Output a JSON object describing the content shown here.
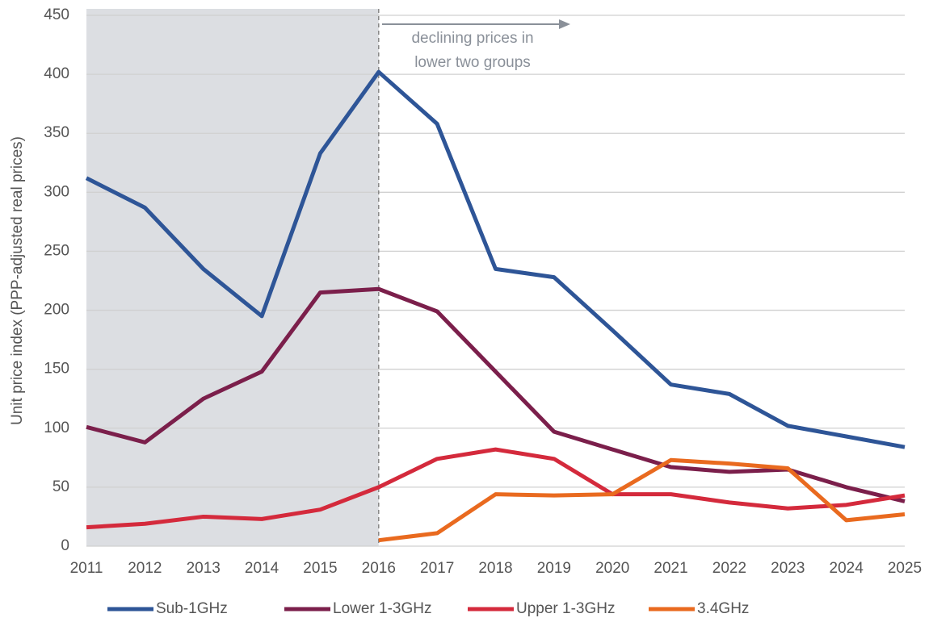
{
  "chart_data": {
    "type": "line",
    "y_label": "Unit price index (PPP-adjusted real prices)",
    "annotation": [
      "declining prices in",
      "lower two groups"
    ],
    "shaded_xlim": [
      2011,
      2016
    ],
    "x": [
      2011,
      2012,
      2013,
      2014,
      2015,
      2016,
      2017,
      2018,
      2019,
      2020,
      2021,
      2022,
      2023,
      2024,
      2025
    ],
    "xlim": [
      2011,
      2025
    ],
    "ylim": [
      0,
      450
    ],
    "yticks": [
      0,
      50,
      100,
      150,
      200,
      250,
      300,
      350,
      400,
      450
    ],
    "grid": true,
    "legend": "bottom",
    "series": [
      {
        "name": "Sub-1GHz",
        "color": "#2e5597",
        "values": [
          312,
          287,
          235,
          195,
          333,
          402,
          358,
          235,
          228,
          183,
          137,
          129,
          102,
          93,
          84
        ]
      },
      {
        "name": "Lower 1-3GHz",
        "color": "#7b1f4b",
        "values": [
          101,
          88,
          125,
          148,
          215,
          218,
          199,
          148,
          97,
          82,
          67,
          63,
          65,
          50,
          38
        ]
      },
      {
        "name": "Upper 1-3GHz",
        "color": "#d42a3c",
        "values": [
          16,
          19,
          25,
          23,
          31,
          50,
          74,
          82,
          74,
          44,
          44,
          37,
          32,
          35,
          43
        ]
      },
      {
        "name": "3.4GHz",
        "color": "#e96a1f",
        "values": [
          null,
          null,
          null,
          null,
          null,
          5,
          11,
          44,
          43,
          44,
          73,
          70,
          66,
          22,
          27
        ]
      }
    ]
  }
}
